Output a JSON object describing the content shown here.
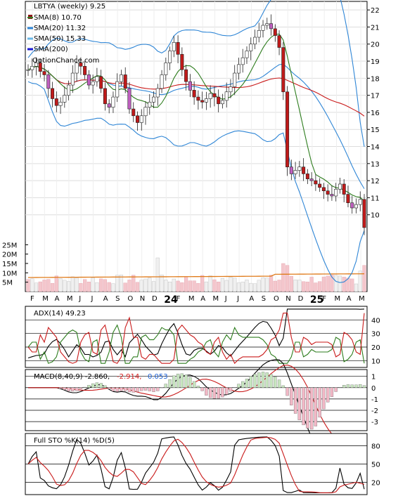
{
  "chart_data": [
    {
      "type": "candlestick",
      "title": "LBTYA (weekly) 9.25",
      "watermark": "OptionChance.com",
      "legend": [
        {
          "label": "SMA(8) 10.70",
          "color": "#2e7d1e"
        },
        {
          "label": "SMA(20) 11.32",
          "color": "#2f86d6"
        },
        {
          "label": "SMA(50) 15.33",
          "color": "#6ab8e8"
        },
        {
          "label": "SMA(200)",
          "color": "#1a1ad6"
        }
      ],
      "legend_position": "top-left",
      "ylim": [
        9,
        22.5
      ],
      "yticks": [
        10,
        11,
        12,
        13,
        14,
        15,
        16,
        17,
        18,
        19,
        20,
        21,
        22
      ],
      "x_month_labels": [
        "F",
        "M",
        "A",
        "M",
        "J",
        "J",
        "A",
        "S",
        "O",
        "N",
        "D",
        "24",
        "F",
        "M",
        "A",
        "M",
        "J",
        "J",
        "A",
        "S",
        "O",
        "N",
        "D",
        "25",
        "F",
        "M",
        "A",
        "M"
      ],
      "close": [
        18.5,
        18.7,
        18.9,
        18.4,
        18.2,
        17.4,
        16.8,
        16.4,
        16.6,
        17.0,
        17.6,
        18.3,
        18.9,
        18.7,
        18.2,
        17.6,
        17.8,
        18.1,
        17.4,
        16.5,
        16.3,
        16.9,
        17.8,
        18.2,
        17.4,
        16.2,
        15.8,
        15.4,
        15.8,
        16.3,
        16.6,
        16.9,
        17.4,
        18.2,
        18.9,
        19.6,
        20.1,
        19.4,
        18.5,
        17.8,
        17.3,
        16.9,
        16.7,
        16.6,
        16.8,
        17.1,
        16.9,
        16.5,
        16.7,
        17.2,
        17.5,
        18.3,
        18.8,
        19.2,
        19.6,
        20.0,
        20.4,
        20.8,
        21.1,
        21.2,
        20.9,
        20.5,
        19.8,
        17.2,
        12.8,
        12.4,
        12.6,
        12.8,
        12.4,
        12.1,
        12.0,
        11.8,
        11.6,
        11.4,
        11.2,
        11.1,
        11.5,
        11.8,
        11.2,
        10.7,
        10.4,
        10.6,
        10.9,
        9.25
      ],
      "volume_ylim": [
        0,
        30
      ],
      "volume_ticks": [
        "5M",
        "10M",
        "15M",
        "20M",
        "25M"
      ]
    },
    {
      "type": "line",
      "title": "ADX(14) 49.23",
      "ylim": [
        5,
        50
      ],
      "yticks": [
        10,
        20,
        30,
        40
      ]
    },
    {
      "type": "line",
      "title": "MACD(8,40,9) -2.860,",
      "values_text": [
        "-2.914,",
        "0.053"
      ],
      "ylim": [
        -3.8,
        1.6
      ],
      "yticks": [
        -3,
        -2,
        -1,
        0,
        1
      ]
    },
    {
      "type": "line",
      "title": "Full STO %K(14) %D(5)",
      "ylim": [
        0,
        100
      ],
      "yticks": [
        20,
        50,
        80
      ]
    }
  ]
}
